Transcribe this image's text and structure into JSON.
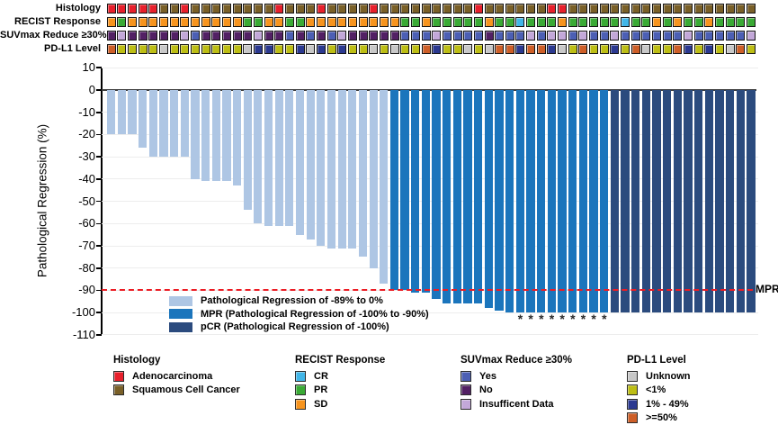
{
  "figure": {
    "description": "Waterfall plot of pathological regression with clinical annotation tracks"
  },
  "tracks": {
    "rows": [
      {
        "id": "histology",
        "label": "Histology",
        "colors": {
          "A": "#E8202C",
          "S": "#7A6028"
        },
        "cells": [
          "A",
          "A",
          "A",
          "A",
          "A",
          "S",
          "S",
          "A",
          "S",
          "S",
          "S",
          "S",
          "S",
          "S",
          "S",
          "S",
          "A",
          "S",
          "S",
          "S",
          "A",
          "S",
          "S",
          "S",
          "S",
          "A",
          "S",
          "S",
          "S",
          "S",
          "S",
          "S",
          "S",
          "S",
          "S",
          "A",
          "S",
          "S",
          "S",
          "S",
          "S",
          "S",
          "A",
          "A",
          "S",
          "S",
          "S",
          "S",
          "S",
          "S",
          "S",
          "S",
          "S",
          "S",
          "S",
          "S",
          "S",
          "S",
          "S",
          "S",
          "S",
          "S"
        ]
      },
      {
        "id": "recist",
        "label": "RECIST Response",
        "colors": {
          "CR": "#41B6E8",
          "PR": "#3AAA35",
          "SD": "#F7941E"
        },
        "cells": [
          "SD",
          "PR",
          "SD",
          "SD",
          "SD",
          "SD",
          "SD",
          "SD",
          "SD",
          "SD",
          "SD",
          "SD",
          "SD",
          "PR",
          "PR",
          "SD",
          "SD",
          "PR",
          "PR",
          "SD",
          "SD",
          "SD",
          "SD",
          "SD",
          "SD",
          "SD",
          "SD",
          "SD",
          "PR",
          "PR",
          "SD",
          "PR",
          "PR",
          "PR",
          "PR",
          "PR",
          "SD",
          "PR",
          "PR",
          "CR",
          "PR",
          "PR",
          "PR",
          "SD",
          "PR",
          "PR",
          "PR",
          "PR",
          "PR",
          "CR",
          "PR",
          "PR",
          "SD",
          "PR",
          "SD",
          "PR",
          "PR",
          "SD",
          "PR",
          "PR",
          "PR",
          "PR"
        ]
      },
      {
        "id": "suvmax",
        "label": "SUVmax Reduce ≥30%",
        "colors": {
          "Yes": "#4C5FB4",
          "No": "#522064",
          "Ins": "#C3A8D9"
        },
        "cells": [
          "No",
          "Ins",
          "No",
          "No",
          "No",
          "No",
          "No",
          "Ins",
          "Yes",
          "No",
          "No",
          "No",
          "No",
          "No",
          "Ins",
          "No",
          "No",
          "Yes",
          "No",
          "Yes",
          "No",
          "Yes",
          "Ins",
          "No",
          "No",
          "No",
          "No",
          "No",
          "Yes",
          "Yes",
          "Yes",
          "Ins",
          "Yes",
          "Yes",
          "Yes",
          "Yes",
          "No",
          "Yes",
          "Yes",
          "Yes",
          "Ins",
          "Yes",
          "Ins",
          "Ins",
          "Yes",
          "Ins",
          "Yes",
          "Yes",
          "Ins",
          "Yes",
          "Yes",
          "Yes",
          "Yes",
          "Yes",
          "Yes",
          "Ins",
          "Yes",
          "Yes",
          "Yes",
          "Yes",
          "Yes",
          "Ins"
        ]
      },
      {
        "id": "pdl1",
        "label": "PD-L1 Level",
        "colors": {
          "unk": "#C8C8C8",
          "lt1": "#BDBE14",
          "mid": "#2B3990",
          "ge50": "#CE5F28"
        },
        "cells": [
          "ge50",
          "lt1",
          "lt1",
          "lt1",
          "lt1",
          "unk",
          "lt1",
          "lt1",
          "lt1",
          "lt1",
          "lt1",
          "lt1",
          "lt1",
          "unk",
          "mid",
          "mid",
          "lt1",
          "lt1",
          "mid",
          "unk",
          "mid",
          "lt1",
          "mid",
          "lt1",
          "lt1",
          "unk",
          "lt1",
          "unk",
          "lt1",
          "lt1",
          "ge50",
          "mid",
          "lt1",
          "lt1",
          "unk",
          "lt1",
          "unk",
          "ge50",
          "ge50",
          "mid",
          "ge50",
          "ge50",
          "mid",
          "unk",
          "lt1",
          "ge50",
          "lt1",
          "lt1",
          "mid",
          "lt1",
          "ge50",
          "unk",
          "lt1",
          "lt1",
          "ge50",
          "mid",
          "lt1",
          "mid",
          "lt1",
          "unk",
          "ge50",
          "lt1"
        ]
      }
    ]
  },
  "chart_data": {
    "type": "bar",
    "title": "",
    "xlabel": "",
    "ylabel": "Pathological Regression (%)",
    "ylim": [
      -110,
      10
    ],
    "yticks": [
      10,
      0,
      -10,
      -20,
      -30,
      -40,
      -50,
      -60,
      -70,
      -80,
      -90,
      -100,
      -110
    ],
    "grid": "horizontal-light",
    "n_bars": 62,
    "values": [
      -20,
      -20,
      -20,
      -26,
      -30,
      -30,
      -30,
      -30,
      -40,
      -41,
      -41,
      -41,
      -43,
      -54,
      -60,
      -61,
      -61,
      -61,
      -65,
      -67,
      -70,
      -71,
      -71,
      -71,
      -75,
      -80,
      -87,
      -90,
      -90,
      -91,
      -91,
      -94,
      -96,
      -96,
      -96,
      -96,
      -98,
      -99,
      -100,
      -100,
      -100,
      -100,
      -100,
      -100,
      -100,
      -100,
      -100,
      -100,
      -100,
      -100,
      -100,
      -100,
      -100,
      -100,
      -100,
      -100,
      -100,
      -100,
      -100,
      -100,
      -100,
      -100
    ],
    "bar_class": [
      "reg",
      "reg",
      "reg",
      "reg",
      "reg",
      "reg",
      "reg",
      "reg",
      "reg",
      "reg",
      "reg",
      "reg",
      "reg",
      "reg",
      "reg",
      "reg",
      "reg",
      "reg",
      "reg",
      "reg",
      "reg",
      "reg",
      "reg",
      "reg",
      "reg",
      "reg",
      "reg",
      "mpr",
      "mpr",
      "mpr",
      "mpr",
      "mpr",
      "mpr",
      "mpr",
      "mpr",
      "mpr",
      "mpr",
      "mpr",
      "mpr",
      "mpr",
      "mpr",
      "mpr",
      "mpr",
      "mpr",
      "mpr",
      "mpr",
      "mpr",
      "mpr",
      "pcr",
      "pcr",
      "pcr",
      "pcr",
      "pcr",
      "pcr",
      "pcr",
      "pcr",
      "pcr",
      "pcr",
      "pcr",
      "pcr",
      "pcr",
      "pcr"
    ],
    "asterisk_bar_indices": [
      39,
      40,
      41,
      42,
      43,
      44,
      45,
      46,
      47
    ],
    "reference_line": {
      "y": -90,
      "label": "MPR",
      "color": "#EC1C24",
      "style": "dashed"
    }
  },
  "legend_in_plot": {
    "items": [
      {
        "label": "Pathological Regression of -89% to 0%",
        "color": "#AEC6E4"
      },
      {
        "label": "MPR (Pathological Regression of -100% to -90%)",
        "color": "#1B75BC"
      },
      {
        "label": "pCR (Pathological Regression of -100%)",
        "color": "#2B4B7E"
      }
    ]
  },
  "legend_groups": [
    {
      "title": "Histology",
      "items": [
        {
          "label": "Adenocarcinoma",
          "color": "#E8202C"
        },
        {
          "label": "Squamous Cell Cancer",
          "color": "#7A6028"
        }
      ]
    },
    {
      "title": "RECIST Response",
      "items": [
        {
          "label": "CR",
          "color": "#41B6E8"
        },
        {
          "label": "PR",
          "color": "#3AAA35"
        },
        {
          "label": "SD",
          "color": "#F7941E"
        }
      ]
    },
    {
      "title": "SUVmax Reduce ≥30%",
      "items": [
        {
          "label": "Yes",
          "color": "#4C5FB4"
        },
        {
          "label": "No",
          "color": "#522064"
        },
        {
          "label": "Insufficent Data",
          "color": "#C3A8D9"
        }
      ]
    },
    {
      "title": "PD-L1 Level",
      "items": [
        {
          "label": "Unknown",
          "color": "#C8C8C8"
        },
        {
          "label": "<1%",
          "color": "#BDBE14"
        },
        {
          "label": "1% - 49%",
          "color": "#2B3990"
        },
        {
          "label": ">=50%",
          "color": "#CE5F28"
        }
      ]
    }
  ],
  "colors": {
    "bars": {
      "reg": "#AEC6E4",
      "mpr": "#1B75BC",
      "pcr": "#2B4B7E"
    },
    "reference_line": "#EC1C24",
    "gridline": "#EDEDED",
    "axis": "#000000",
    "zero_line": "#3C3C3C",
    "asterisk": "#2B2B2B"
  }
}
